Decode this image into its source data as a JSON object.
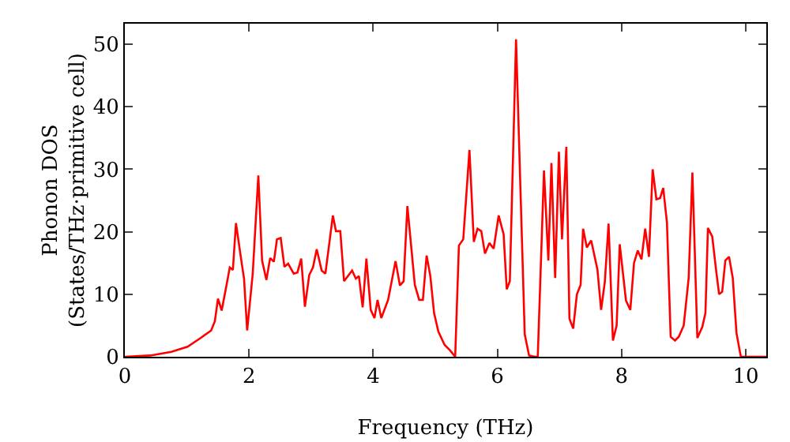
{
  "chart_data": {
    "type": "line",
    "xlabel": "Frequency (THz)",
    "ylabel": "Phonon DOS\n(States/THz·primitive cell)",
    "xlim": [
      0,
      10.33
    ],
    "ylim": [
      0,
      53.3
    ],
    "xticks": [
      0,
      2,
      4,
      6,
      8,
      10
    ],
    "yticks": [
      0,
      10,
      20,
      30,
      40,
      50
    ],
    "grid": false,
    "marker": "none",
    "line_style": "solid",
    "x": [
      0,
      0.41,
      0.75,
      1.01,
      1.22,
      1.39,
      1.45,
      1.5,
      1.56,
      1.64,
      1.69,
      1.74,
      1.79,
      1.87,
      1.92,
      1.97,
      2.06,
      2.15,
      2.21,
      2.28,
      2.34,
      2.4,
      2.45,
      2.51,
      2.57,
      2.63,
      2.72,
      2.78,
      2.84,
      2.9,
      2.97,
      3.03,
      3.09,
      3.17,
      3.23,
      3.35,
      3.4,
      3.47,
      3.53,
      3.66,
      3.72,
      3.77,
      3.83,
      3.89,
      3.96,
      4.02,
      4.07,
      4.13,
      4.24,
      4.36,
      4.43,
      4.49,
      4.55,
      4.67,
      4.74,
      4.8,
      4.86,
      4.92,
      4.98,
      5.05,
      5.15,
      5.24,
      5.32,
      5.38,
      5.45,
      5.55,
      5.62,
      5.68,
      5.74,
      5.8,
      5.87,
      5.94,
      6.02,
      6.1,
      6.15,
      6.2,
      6.3,
      6.44,
      6.51,
      6.61,
      6.65,
      6.75,
      6.82,
      6.87,
      6.93,
      6.99,
      7.04,
      7.11,
      7.16,
      7.22,
      7.28,
      7.34,
      7.38,
      7.44,
      7.51,
      7.61,
      7.67,
      7.73,
      7.79,
      7.86,
      7.92,
      7.97,
      8.07,
      8.14,
      8.2,
      8.26,
      8.32,
      8.38,
      8.44,
      8.5,
      8.56,
      8.62,
      8.67,
      8.73,
      8.79,
      8.86,
      8.92,
      9.0,
      9.08,
      9.14,
      9.22,
      9.3,
      9.35,
      9.39,
      9.46,
      9.52,
      9.57,
      9.62,
      9.67,
      9.73,
      9.79,
      9.85,
      9.92,
      10.33
    ],
    "series": [
      {
        "color": "#ff0000",
        "values": [
          0,
          0.2,
          0.8,
          1.6,
          3,
          4.2,
          5.7,
          9.3,
          7.4,
          11.6,
          14.3,
          13.9,
          21.4,
          15.8,
          12.5,
          4.2,
          13.3,
          29,
          15.4,
          12.3,
          15.8,
          15.2,
          18.8,
          19,
          14.4,
          14.9,
          13.3,
          13.5,
          15.7,
          8,
          13.1,
          14.3,
          17.2,
          13.8,
          13.3,
          22.6,
          20.1,
          20.1,
          12.1,
          13.8,
          12.5,
          12.9,
          7.9,
          15.7,
          7.5,
          6.2,
          9.1,
          6.2,
          9.1,
          15.3,
          11.4,
          12.1,
          24.1,
          11.5,
          9.1,
          9.1,
          16.2,
          12.9,
          7,
          4,
          1.9,
          1,
          0,
          17.8,
          18.8,
          33.1,
          18.4,
          20.5,
          20.1,
          16.5,
          18.2,
          17.3,
          22.6,
          19.6,
          10.8,
          12.1,
          50.8,
          3.6,
          0.2,
          0,
          0,
          29.8,
          15.4,
          31,
          12.6,
          32.8,
          18.8,
          33.6,
          6.1,
          4.5,
          10,
          11.5,
          20.5,
          17.5,
          18.6,
          14,
          7.5,
          12,
          21.3,
          2.6,
          5,
          18,
          9,
          7.5,
          15,
          17,
          15.6,
          20.5,
          16,
          30,
          25.2,
          25.4,
          27,
          21.5,
          3.2,
          2.6,
          3.2,
          5,
          12.6,
          29.5,
          3,
          4.8,
          7,
          20.6,
          19.2,
          14,
          10,
          10.4,
          15.4,
          16,
          12.6,
          3.8,
          0,
          0
        ]
      }
    ]
  }
}
